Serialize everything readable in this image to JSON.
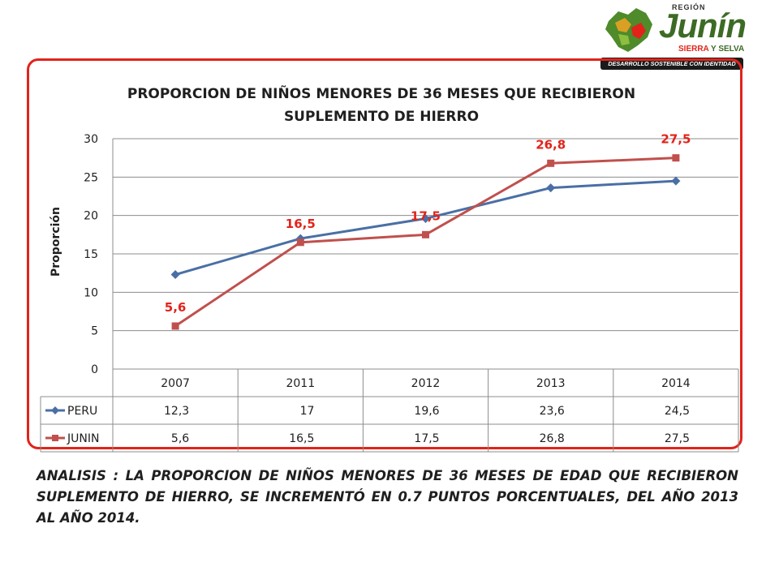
{
  "logo": {
    "region": "REGIÓN",
    "name": "Junín",
    "tag_sierra": "SIERRA",
    "tag_y": "Y",
    "tag_selva": "SELVA",
    "strip": "DESARROLLO SOSTENIBLE CON IDENTIDAD"
  },
  "colors": {
    "frame": "#e2231a",
    "peru": "#4a6fa5",
    "junin": "#c0504d",
    "junin_label": "#e2231a"
  },
  "chart_data": {
    "type": "line",
    "title_line1": "PROPORCION DE NIÑOS MENORES DE 36 MESES QUE RECIBIERON",
    "title_line2": "SUPLEMENTO DE HIERRO",
    "ylabel": "Proporción",
    "ylim": [
      0,
      30
    ],
    "yticks": [
      "0",
      "5",
      "10",
      "15",
      "20",
      "25",
      "30"
    ],
    "grid": true,
    "categories": [
      "2007",
      "2011",
      "2012",
      "2013",
      "2014"
    ],
    "series": [
      {
        "name": "PERU",
        "values": [
          12.3,
          17,
          19.6,
          23.6,
          24.5
        ],
        "labels": [
          "12,3",
          "17",
          "19,6",
          "23,6",
          "24,5"
        ],
        "marker": "diamond",
        "point_labels": false
      },
      {
        "name": "JUNIN",
        "values": [
          5.6,
          16.5,
          17.5,
          26.8,
          27.5
        ],
        "labels": [
          "5,6",
          "16,5",
          "17,5",
          "26,8",
          "27,5"
        ],
        "marker": "square",
        "point_labels": true
      }
    ],
    "legend": "data-table"
  },
  "analysis": "ANALISIS : LA PROPORCION DE NIÑOS  MENORES DE 36 MESES DE EDAD QUE RECIBIERON SUPLEMENTO DE HIERRO,  SE  INCREMENTÓ EN 0.7  PUNTOS PORCENTUALES, DEL AÑO 2013 AL AÑO 2014."
}
